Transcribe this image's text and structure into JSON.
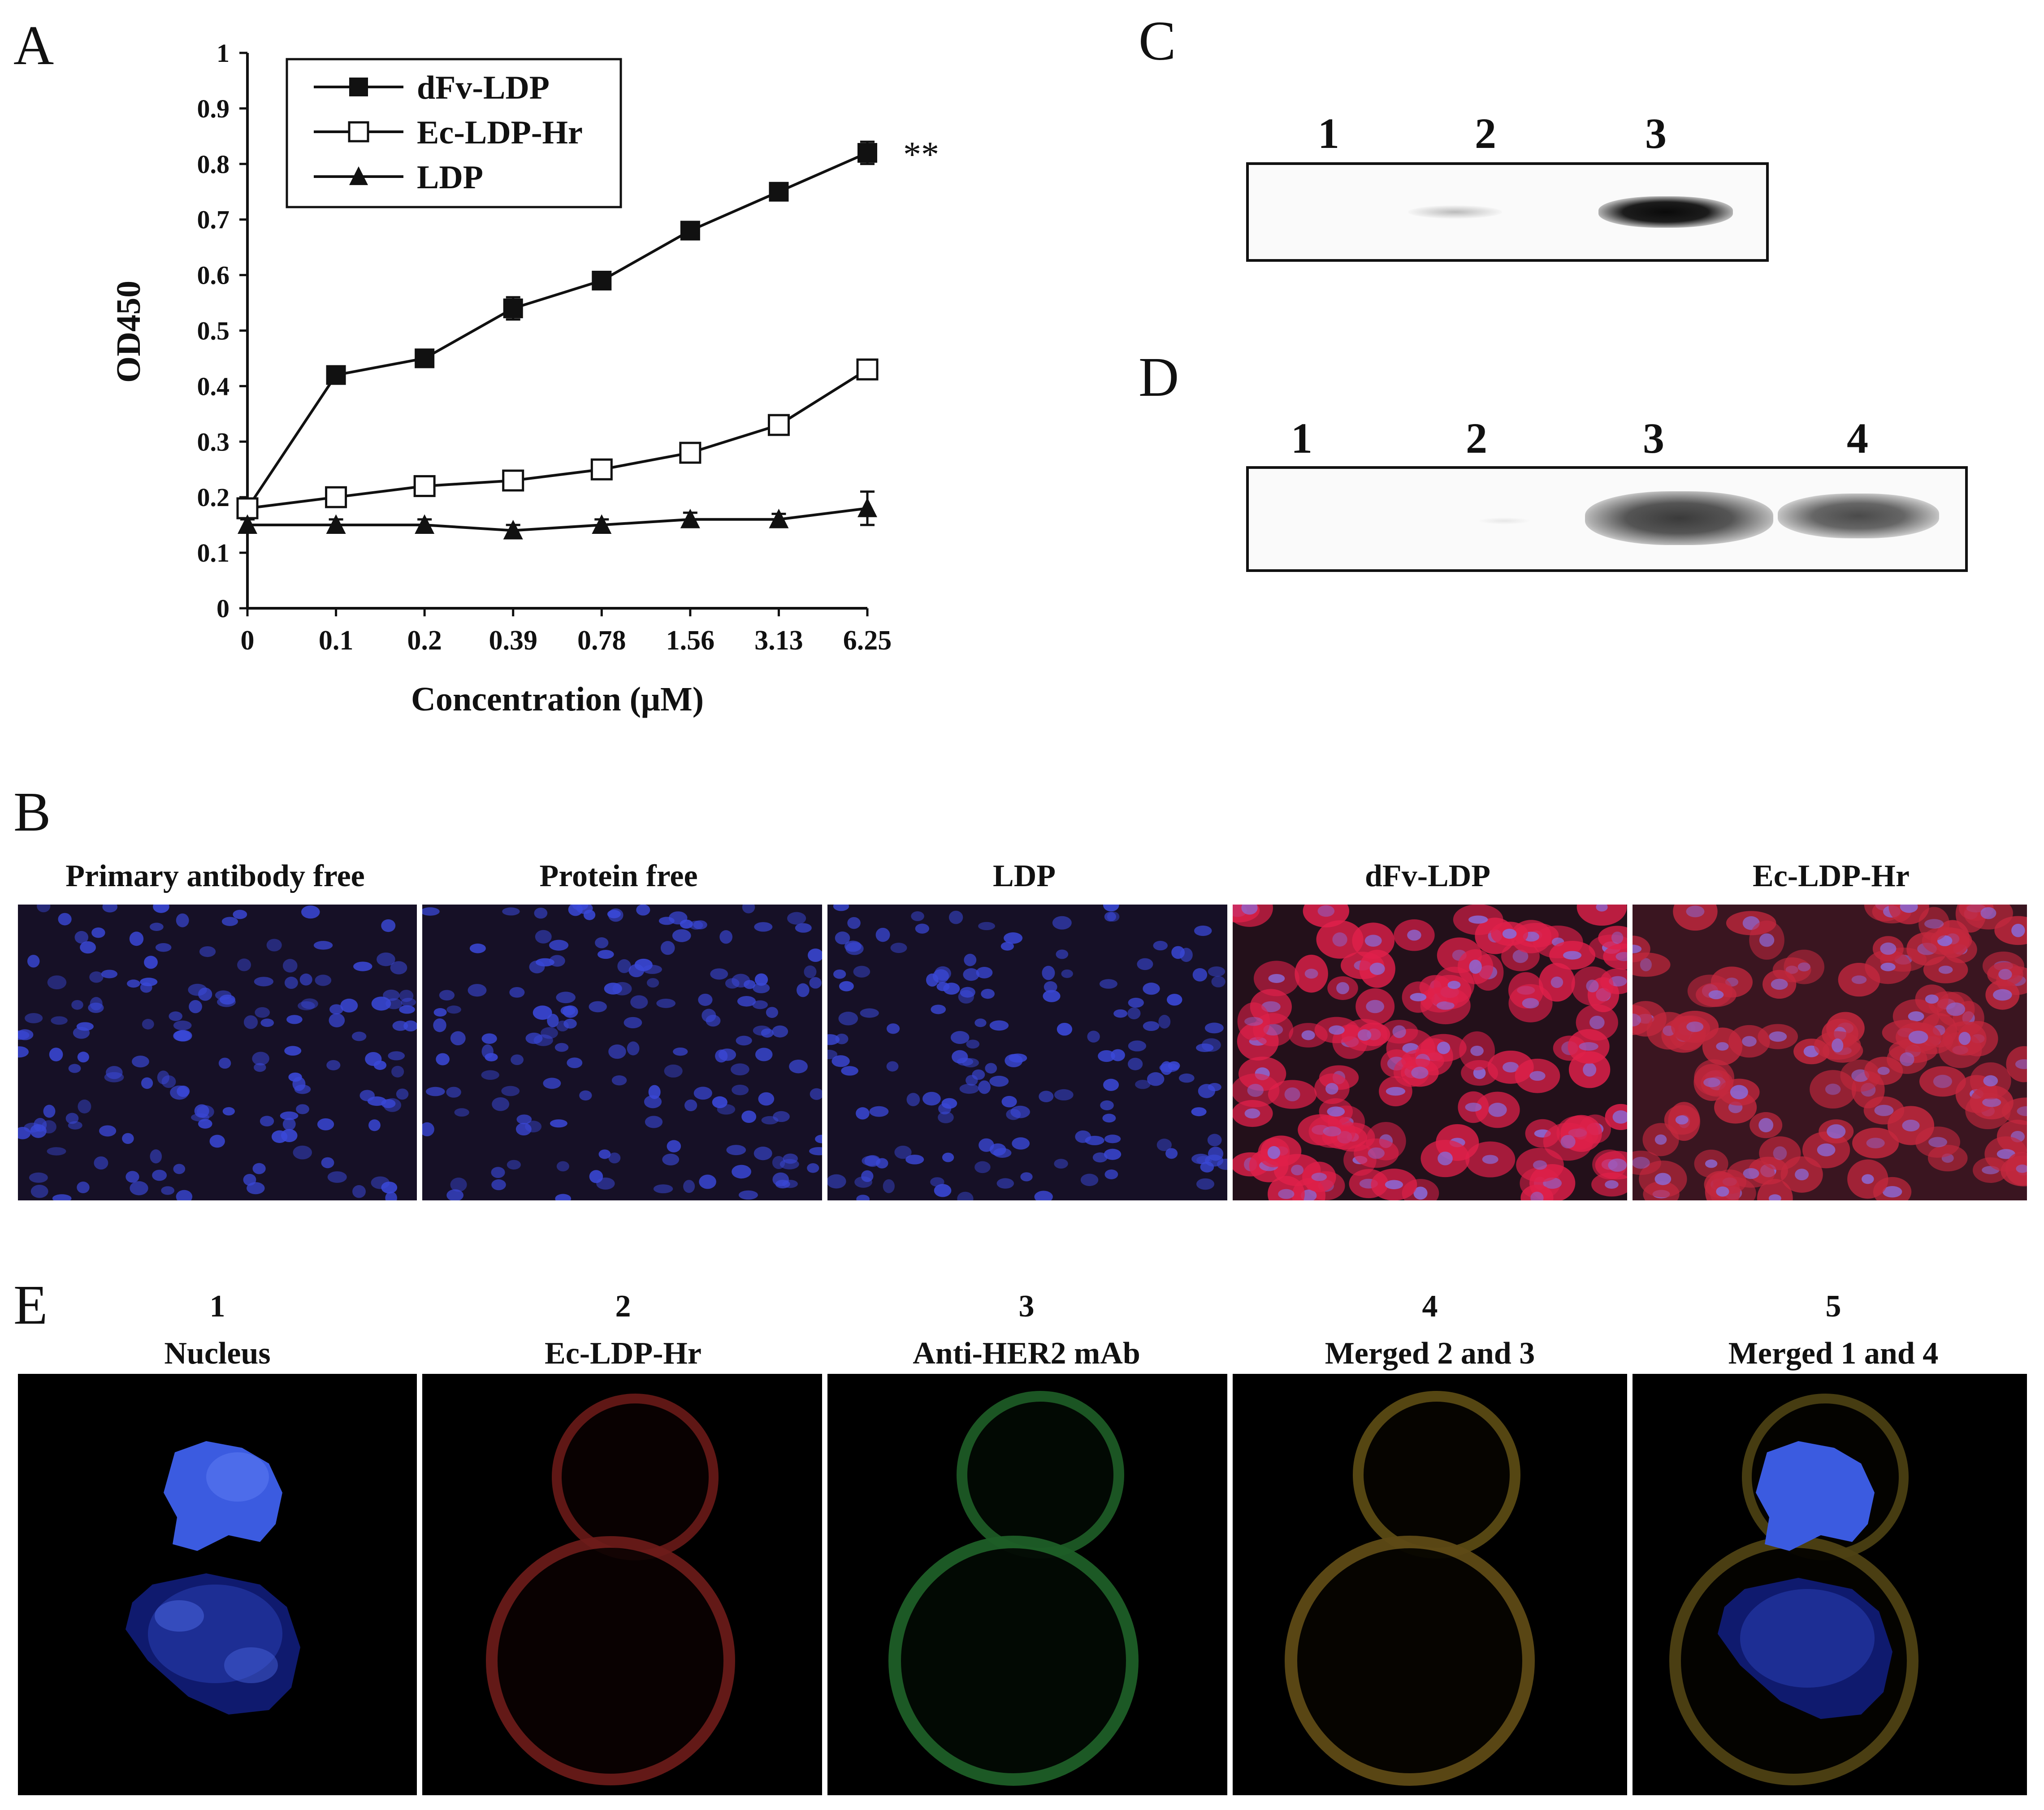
{
  "panel_letters": {
    "a": "A",
    "b": "B",
    "c": "C",
    "d": "D",
    "e": "E"
  },
  "chart_data": {
    "type": "line",
    "x": [
      "0",
      "0.1",
      "0.2",
      "0.39",
      "0.78",
      "1.56",
      "3.13",
      "6.25"
    ],
    "xlabel": "Concentration (μM)",
    "ylabel": "OD450",
    "ylim": [
      0,
      1
    ],
    "yticks": [
      "0",
      "0.1",
      "0.2",
      "0.3",
      "0.4",
      "0.5",
      "0.6",
      "0.7",
      "0.8",
      "0.9",
      "1"
    ],
    "legend_position": "top-left",
    "grid": false,
    "significance": "**",
    "series": [
      {
        "name": "dFv-LDP",
        "marker": "filled-square",
        "values": [
          0.18,
          0.42,
          0.45,
          0.54,
          0.59,
          0.68,
          0.75,
          0.82
        ],
        "err": [
          0.01,
          0.01,
          0.01,
          0.02,
          0.015,
          0.015,
          0.01,
          0.02
        ]
      },
      {
        "name": "Ec-LDP-Hr",
        "marker": "open-square",
        "values": [
          0.18,
          0.2,
          0.22,
          0.23,
          0.25,
          0.28,
          0.33,
          0.43
        ],
        "err": [
          0.01,
          0.015,
          0.01,
          0.01,
          0.01,
          0.01,
          0.01,
          0.01
        ]
      },
      {
        "name": "LDP",
        "marker": "filled-triangle",
        "values": [
          0.15,
          0.15,
          0.15,
          0.14,
          0.15,
          0.16,
          0.16,
          0.18
        ],
        "err": [
          0.01,
          0.01,
          0.01,
          0.01,
          0.01,
          0.012,
          0.01,
          0.03
        ]
      }
    ]
  },
  "panel_c": {
    "lanes": [
      "1",
      "2",
      "3"
    ],
    "band_intensity": [
      0,
      0.12,
      0.95
    ]
  },
  "panel_d": {
    "lanes": [
      "1",
      "2",
      "3",
      "4"
    ],
    "band_intensity": [
      0,
      0.04,
      0.75,
      0.65
    ]
  },
  "panel_b": {
    "images": [
      {
        "caption": "Primary antibody free",
        "stain": "blue"
      },
      {
        "caption": "Protein free",
        "stain": "blue"
      },
      {
        "caption": "LDP",
        "stain": "blue"
      },
      {
        "caption": "dFv-LDP",
        "stain": "red"
      },
      {
        "caption": "Ec-LDP-Hr",
        "stain": "red"
      }
    ]
  },
  "panel_e": {
    "images": [
      {
        "num": "1",
        "caption": "Nucleus"
      },
      {
        "num": "2",
        "caption": "Ec-LDP-Hr"
      },
      {
        "num": "3",
        "caption": "Anti-HER2 mAb"
      },
      {
        "num": "4",
        "caption": "Merged 2 and 3"
      },
      {
        "num": "5",
        "caption": "Merged 1 and 4"
      }
    ]
  }
}
